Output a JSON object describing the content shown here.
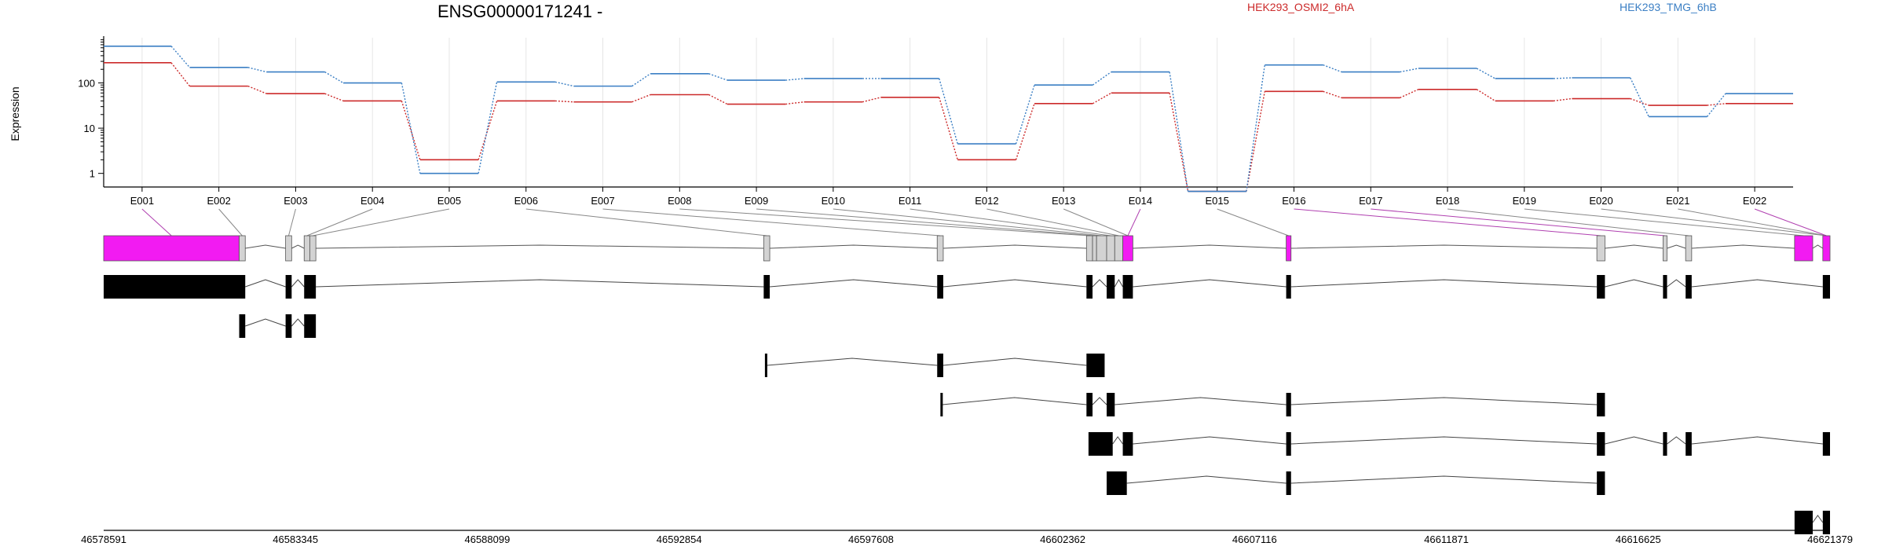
{
  "chart_data": {
    "type": "line",
    "title": "ENSG00000171241 -",
    "ylabel": "Expression",
    "yscale": "log",
    "ylim": [
      0.5,
      1000
    ],
    "y_ticks": [
      1,
      10,
      100
    ],
    "y_tick_labels": [
      "1",
      "10",
      "100"
    ],
    "categories": [
      "E001",
      "E002",
      "E003",
      "E004",
      "E005",
      "E006",
      "E007",
      "E008",
      "E009",
      "E010",
      "E011",
      "E012",
      "E013",
      "E014",
      "E015",
      "E016",
      "E017",
      "E018",
      "E019",
      "E020",
      "E021",
      "E022"
    ],
    "series": [
      {
        "name": "HEK293_OSMI2_6hA",
        "color": "#cc2a2a",
        "values": [
          280,
          85,
          58,
          40,
          2,
          40,
          38,
          55,
          34,
          38,
          48,
          2,
          35,
          60,
          0.4,
          65,
          47,
          72,
          40,
          45,
          32,
          35
        ]
      },
      {
        "name": "HEK293_TMG_6hB",
        "color": "#3b7fc4",
        "values": [
          650,
          220,
          175,
          100,
          1,
          105,
          85,
          160,
          115,
          125,
          125,
          4.5,
          90,
          175,
          0.4,
          250,
          175,
          210,
          125,
          130,
          18,
          58
        ]
      }
    ],
    "grid": "vertical",
    "legend_position": "top",
    "exon_map_colors": {
      "significant": "#f21bf2",
      "normal": "#d3d3d3"
    },
    "exon_highlights": [
      "E001",
      "E014",
      "E016",
      "E017",
      "E022"
    ],
    "genomic_axis_labels": [
      "46578591",
      "46583345",
      "46588099",
      "46592854",
      "46597608",
      "46602362",
      "46607116",
      "46611871",
      "46616625",
      "46621379"
    ],
    "genomic_range": [
      46578591,
      46621379
    ]
  }
}
